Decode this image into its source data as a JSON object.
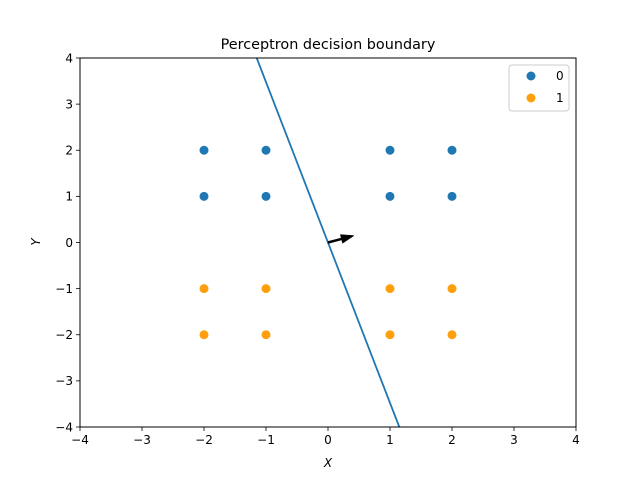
{
  "chart_data": {
    "type": "scatter",
    "title": "Perceptron decision boundary",
    "xlabel": "X",
    "ylabel": "Y",
    "xlim": [
      -4,
      4
    ],
    "ylim": [
      -4,
      4
    ],
    "xticks": [
      -4,
      -3,
      -2,
      -1,
      0,
      1,
      2,
      3,
      4
    ],
    "yticks": [
      -4,
      -3,
      -2,
      -1,
      0,
      1,
      2,
      3,
      4
    ],
    "grid": false,
    "legend_position": "top-right",
    "series": [
      {
        "name": "0",
        "color": "#1f77b4",
        "points": [
          [
            -2,
            2
          ],
          [
            -1,
            2
          ],
          [
            1,
            2
          ],
          [
            2,
            2
          ],
          [
            -2,
            1
          ],
          [
            -1,
            1
          ],
          [
            1,
            1
          ],
          [
            2,
            1
          ]
        ]
      },
      {
        "name": "1",
        "color": "#ff9f0e",
        "points": [
          [
            -2,
            -1
          ],
          [
            -1,
            -1
          ],
          [
            1,
            -1
          ],
          [
            2,
            -1
          ],
          [
            -2,
            -2
          ],
          [
            -1,
            -2
          ],
          [
            1,
            -2
          ],
          [
            2,
            -2
          ]
        ]
      }
    ],
    "decision_line": {
      "color": "#1f77b4",
      "from": [
        -1.15,
        4
      ],
      "to": [
        1.15,
        -4
      ]
    },
    "weight_arrow": {
      "color": "#000000",
      "from": [
        0,
        0
      ],
      "to": [
        0.42,
        0.15
      ]
    }
  }
}
